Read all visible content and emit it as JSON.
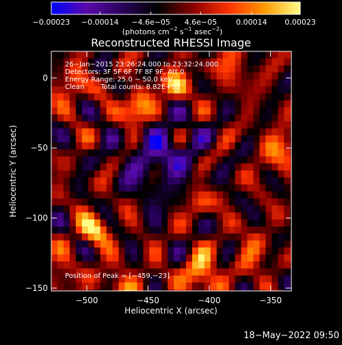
{
  "chart_data": {
    "type": "heatmap",
    "title": "Reconstructed RHESSI Image",
    "xlabel": "Heliocentric X (arcsec)",
    "ylabel": "Heliocentric Y (arcsec)",
    "xlim": [
      -529,
      -333
    ],
    "ylim": [
      -152,
      19
    ],
    "x_ticks": [
      -500,
      -450,
      -400,
      -350
    ],
    "y_ticks": [
      0,
      -50,
      -100,
      -150
    ],
    "x_tick_labels": [
      "−500",
      "−450",
      "−400",
      "−350"
    ],
    "y_tick_labels": [
      "0",
      "−50",
      "−100",
      "−150"
    ],
    "colorbar": {
      "range": [
        -0.00023,
        0.00023
      ],
      "ticks": [
        -0.00023,
        -0.00014,
        -4.6e-05,
        4.6e-05,
        0.00014,
        0.00023
      ],
      "tick_labels": [
        "−0.00023",
        "−0.00014",
        "−4.6e−05",
        "4.6e−05",
        "0.00014",
        "0.00023"
      ],
      "unit_main": "(photons cm",
      "unit_sup1": "−2",
      "unit_mid": " s",
      "unit_sup2": "−1",
      "unit_end": " asec",
      "unit_sup3": "−2",
      "unit_close": ")",
      "colors": [
        "#0000ff",
        "#5a0aa8",
        "#28005a",
        "#000000",
        "#8b0000",
        "#ff3300",
        "#ff9900",
        "#ffff88"
      ]
    },
    "annotations": {
      "time_range": "26−Jan−2015 23:26:24.000 to 23:32:24.000",
      "detectors": "Detectors: 3F 5F 6F 7F 8F 9F, Att 0",
      "energy_range": "Energy Range: 25.0 − 50.0 keV",
      "method": "Clean",
      "total_counts": "Total counts: 8.82E+03",
      "peak": "Position of Peak = [−459,−23]"
    },
    "peak_position": [
      -459,
      -23
    ],
    "bright_sources": [
      {
        "x": -459,
        "y": -23,
        "sigma": 9,
        "amplitude": 1.0
      },
      {
        "x": -427,
        "y": -5,
        "sigma": 8,
        "amplitude": 0.85
      },
      {
        "x": -494,
        "y": -108,
        "sigma": 9,
        "amplitude": 0.75
      },
      {
        "x": -407,
        "y": -140,
        "sigma": 10,
        "amplitude": 0.8
      },
      {
        "x": -342,
        "y": -52,
        "sigma": 10,
        "amplitude": 0.55
      },
      {
        "x": -408,
        "y": -88,
        "sigma": 8,
        "amplitude": 0.5
      },
      {
        "x": -512,
        "y": -5,
        "sigma": 9,
        "amplitude": 0.5
      },
      {
        "x": -380,
        "y": 8,
        "sigma": 9,
        "amplitude": 0.45
      },
      {
        "x": -365,
        "y": -125,
        "sigma": 9,
        "amplitude": 0.45
      },
      {
        "x": -470,
        "y": -150,
        "sigma": 10,
        "amplitude": 0.5
      },
      {
        "x": -520,
        "y": -140,
        "sigma": 8,
        "amplitude": 0.4
      }
    ],
    "negative_region": {
      "x": -440,
      "y": -55,
      "sigma": 22,
      "amplitude": 0.55
    }
  },
  "footer": {
    "date": "18−May−2022 09:50"
  }
}
